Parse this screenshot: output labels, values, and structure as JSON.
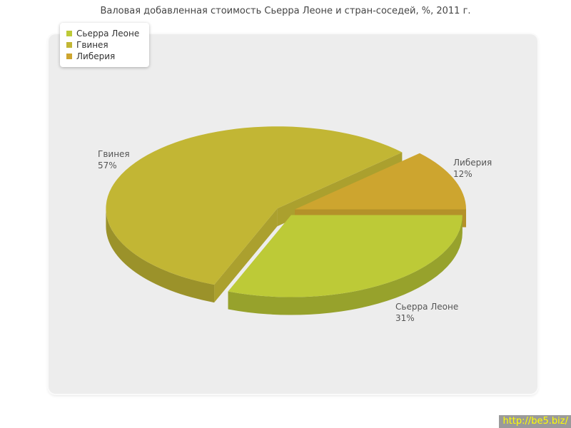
{
  "title": "Валовая добавленная стоимость Сьерра Леоне и стран-соседей, %, 2011 г.",
  "watermark": "http://be5.biz/",
  "chart_data": {
    "type": "pie",
    "style": "3d-exploded",
    "title": "Валовая добавленная стоимость Сьерра Леоне и стран-соседей, %, 2011 г.",
    "unit": "%",
    "legend_position": "top-left",
    "slices": [
      {
        "name": "Сьерра Леоне",
        "value": 31,
        "label": "31%",
        "color": "#bdca37"
      },
      {
        "name": "Гвинея",
        "value": 57,
        "label": "57%",
        "color": "#c2b634"
      },
      {
        "name": "Либерия",
        "value": 12,
        "label": "12%",
        "color": "#cda52f"
      }
    ]
  }
}
